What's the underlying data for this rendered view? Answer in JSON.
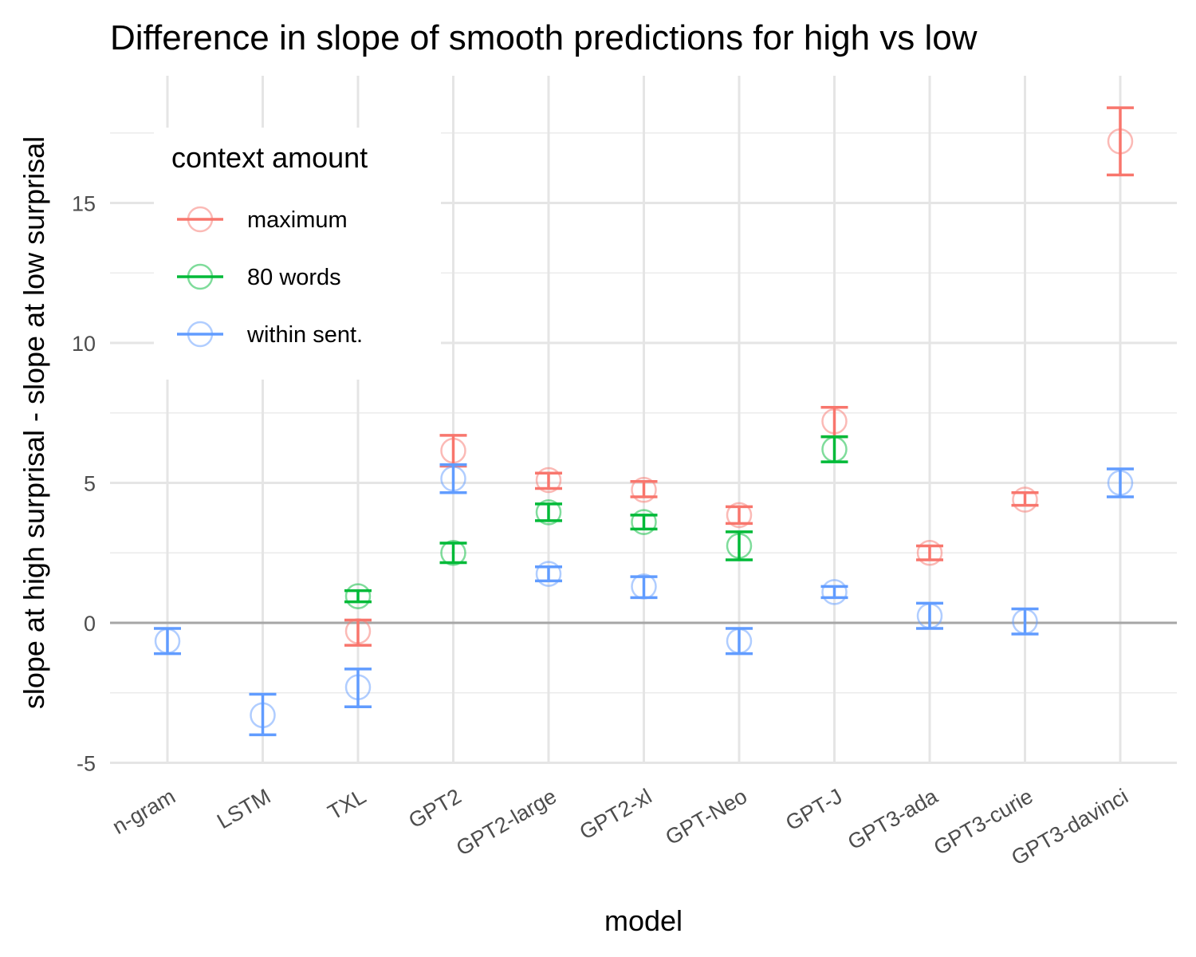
{
  "chart_data": {
    "type": "scatter",
    "title": "Difference in slope of smooth predictions for high vs low",
    "xlabel": "model",
    "ylabel": "slope at high surprisal - slope at low surprisal",
    "categories": [
      "n-gram",
      "LSTM",
      "TXL",
      "GPT2",
      "GPT2-large",
      "GPT2-xl",
      "GPT-Neo",
      "GPT-J",
      "GPT3-ada",
      "GPT3-curie",
      "GPT3-davinci"
    ],
    "ylim": [
      -5,
      19
    ],
    "yticks": [
      -5,
      0,
      5,
      10,
      15
    ],
    "ytick_labels": [
      "-5",
      "0",
      "5",
      "10",
      "15"
    ],
    "reference_line": 0,
    "legend": {
      "title": "context amount",
      "position": "top-left"
    },
    "series": [
      {
        "name": "maximum",
        "color": "#F8766D",
        "points": [
          {
            "category": "TXL",
            "y": -0.3,
            "lo": -0.8,
            "hi": 0.1
          },
          {
            "category": "GPT2",
            "y": 6.15,
            "lo": 5.6,
            "hi": 6.7
          },
          {
            "category": "GPT2-large",
            "y": 5.1,
            "lo": 4.8,
            "hi": 5.35
          },
          {
            "category": "GPT2-xl",
            "y": 4.75,
            "lo": 4.5,
            "hi": 5.05
          },
          {
            "category": "GPT-Neo",
            "y": 3.85,
            "lo": 3.55,
            "hi": 4.15
          },
          {
            "category": "GPT-J",
            "y": 7.2,
            "lo": 6.65,
            "hi": 7.7
          },
          {
            "category": "GPT3-ada",
            "y": 2.5,
            "lo": 2.25,
            "hi": 2.75
          },
          {
            "category": "GPT3-curie",
            "y": 4.4,
            "lo": 4.2,
            "hi": 4.65
          },
          {
            "category": "GPT3-davinci",
            "y": 17.2,
            "lo": 16.0,
            "hi": 18.4
          }
        ]
      },
      {
        "name": "80 words",
        "color": "#00BA38",
        "points": [
          {
            "category": "TXL",
            "y": 0.95,
            "lo": 0.75,
            "hi": 1.15
          },
          {
            "category": "GPT2",
            "y": 2.5,
            "lo": 2.15,
            "hi": 2.85
          },
          {
            "category": "GPT2-large",
            "y": 3.95,
            "lo": 3.65,
            "hi": 4.25
          },
          {
            "category": "GPT2-xl",
            "y": 3.6,
            "lo": 3.35,
            "hi": 3.85
          },
          {
            "category": "GPT-Neo",
            "y": 2.75,
            "lo": 2.25,
            "hi": 3.25
          },
          {
            "category": "GPT-J",
            "y": 6.2,
            "lo": 5.75,
            "hi": 6.65
          }
        ]
      },
      {
        "name": "within sent.",
        "color": "#619CFF",
        "points": [
          {
            "category": "n-gram",
            "y": -0.65,
            "lo": -1.1,
            "hi": -0.2
          },
          {
            "category": "LSTM",
            "y": -3.3,
            "lo": -4.0,
            "hi": -2.55
          },
          {
            "category": "TXL",
            "y": -2.3,
            "lo": -3.0,
            "hi": -1.65
          },
          {
            "category": "GPT2",
            "y": 5.15,
            "lo": 4.65,
            "hi": 5.65
          },
          {
            "category": "GPT2-large",
            "y": 1.75,
            "lo": 1.5,
            "hi": 2.0
          },
          {
            "category": "GPT2-xl",
            "y": 1.3,
            "lo": 0.9,
            "hi": 1.65
          },
          {
            "category": "GPT-Neo",
            "y": -0.65,
            "lo": -1.1,
            "hi": -0.2
          },
          {
            "category": "GPT-J",
            "y": 1.1,
            "lo": 0.9,
            "hi": 1.3
          },
          {
            "category": "GPT3-ada",
            "y": 0.25,
            "lo": -0.2,
            "hi": 0.7
          },
          {
            "category": "GPT3-curie",
            "y": 0.05,
            "lo": -0.4,
            "hi": 0.5
          },
          {
            "category": "GPT3-davinci",
            "y": 5.0,
            "lo": 4.5,
            "hi": 5.5
          }
        ]
      }
    ]
  }
}
